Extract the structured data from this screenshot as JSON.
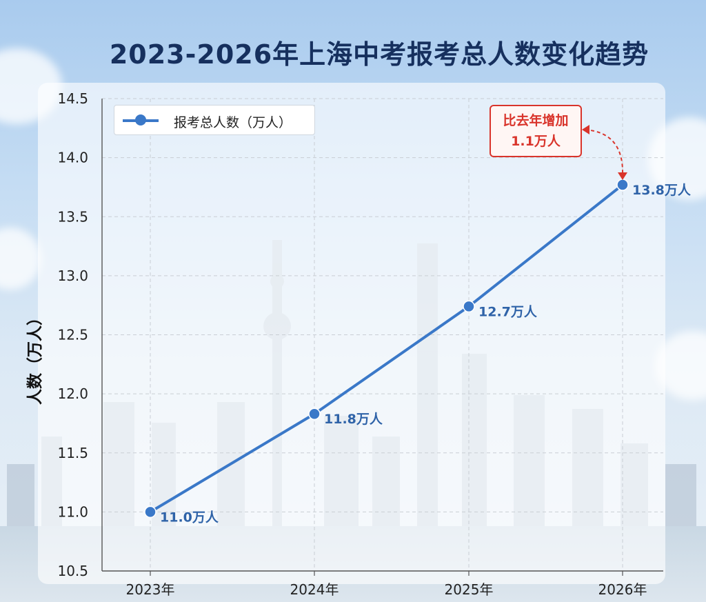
{
  "title": "2023-2026年上海中考报考总人数变化趋势",
  "legend": {
    "label": "报考总人数（万人）"
  },
  "annotation": {
    "line1": "比去年增加",
    "line2": "1.1万人"
  },
  "colors": {
    "series": "#3a78c8",
    "annotation": "#d9342b",
    "title": "#16305e"
  },
  "chart_data": {
    "type": "line",
    "categories": [
      "2023年",
      "2024年",
      "2025年",
      "2026年"
    ],
    "series": [
      {
        "name": "报考总人数（万人）",
        "values": [
          11.0,
          11.83,
          12.74,
          13.77
        ]
      }
    ],
    "data_labels": [
      "11.0万人",
      "11.8万人",
      "12.7万人",
      "13.8万人"
    ],
    "ylabel": "人数（万人）",
    "xlabel": "",
    "ylim": [
      10.5,
      14.5
    ],
    "yticks": [
      "10.5",
      "11.0",
      "11.5",
      "12.0",
      "12.5",
      "13.0",
      "13.5",
      "14.0",
      "14.5"
    ],
    "grid": true,
    "legend_position": "top-left"
  }
}
